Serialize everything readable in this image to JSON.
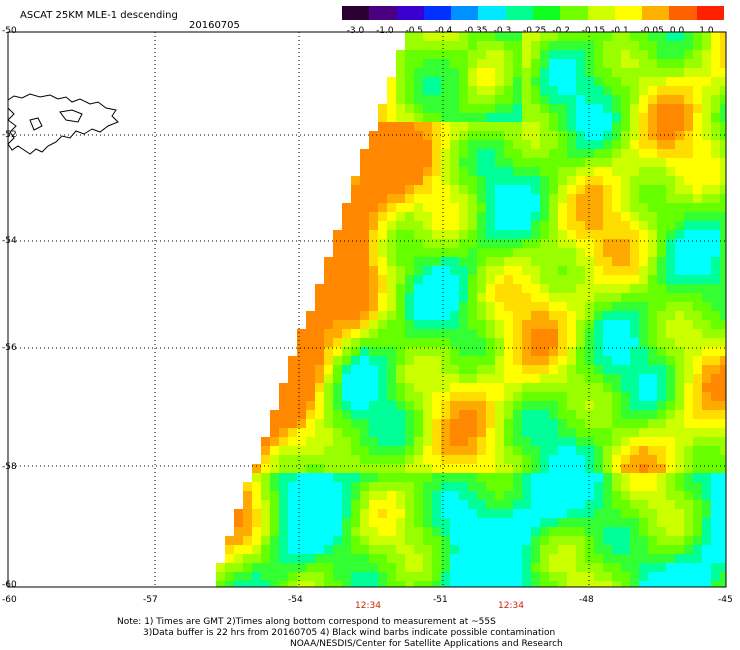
{
  "title": "ASCAT 25KM MLE-1 descending",
  "date": "20160705",
  "colorbar": {
    "labels": [
      "-3.0",
      "-1.0",
      "-0.5",
      "-0.4",
      "-0.35",
      "-0.3",
      "-0.25",
      "-0.2",
      "-0.15",
      "-0.1",
      "-0.05",
      "0.0",
      "1.0"
    ],
    "colors": [
      "#2a0030",
      "#4b0082",
      "#3a00d0",
      "#0030ff",
      "#0090ff",
      "#00e8ff",
      "#00ff90",
      "#10ff20",
      "#70ff00",
      "#d0ff00",
      "#ffff00",
      "#ffb000",
      "#ff6000",
      "#ff2000"
    ]
  },
  "map": {
    "lat_labels": [
      "-50",
      "-52",
      "-54",
      "-56",
      "-58",
      "-60"
    ],
    "lon_labels": [
      "-60",
      "-57",
      "-54",
      "-51",
      "-48",
      "-45"
    ],
    "times": [
      "12:34",
      "12:34"
    ]
  },
  "notes": {
    "line1": "Note: 1) Times are GMT 2)Times along bottom correspond to measurement at ~55S",
    "line2": "3)Data buffer is 22 hrs from 20160705 4) Black wind barbs indicate possible contamination",
    "line3": "NOAA/NESDIS/Center for Satellite Applications and Research"
  }
}
